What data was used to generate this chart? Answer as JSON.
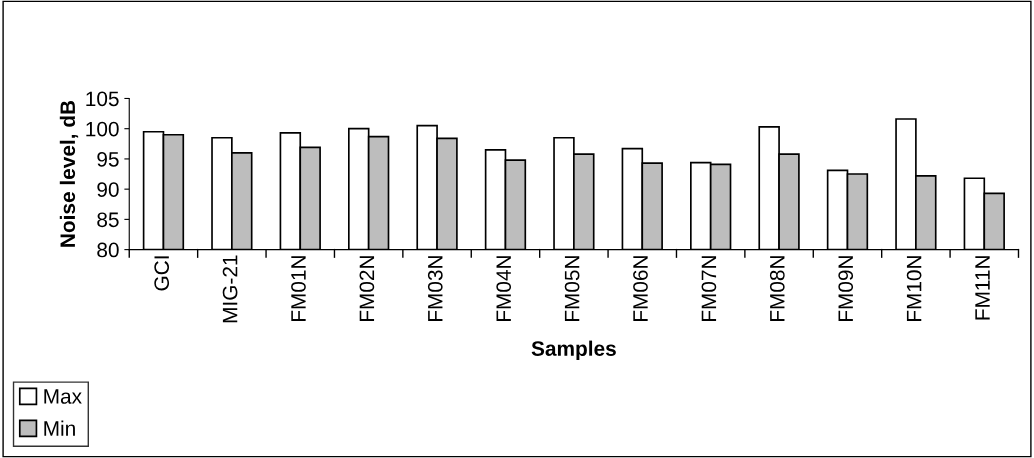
{
  "chart_data": {
    "type": "bar",
    "xlabel": "Samples",
    "ylabel": "Noise level, dB",
    "categories": [
      "GCI",
      "MIG-21",
      "FM01N",
      "FM02N",
      "FM03N",
      "FM04N",
      "FM05N",
      "FM06N",
      "FM07N",
      "FM08N",
      "FM09N",
      "FM10N",
      "FM11N"
    ],
    "series": [
      {
        "name": "Max",
        "color": "#ffffff",
        "values": [
          99.5,
          98.5,
          99.3,
          100.0,
          100.5,
          96.5,
          98.5,
          96.7,
          94.4,
          100.3,
          93.1,
          101.6,
          91.8
        ]
      },
      {
        "name": "Min",
        "color": "#bdbdbd",
        "values": [
          99.0,
          96.0,
          96.9,
          98.7,
          98.4,
          94.8,
          95.8,
          94.3,
          94.1,
          95.8,
          92.5,
          92.2,
          89.3
        ]
      }
    ],
    "ylim": [
      80,
      105
    ],
    "yticks": [
      80,
      85,
      90,
      95,
      100,
      105
    ],
    "grid": false,
    "legend": "bottom left"
  }
}
